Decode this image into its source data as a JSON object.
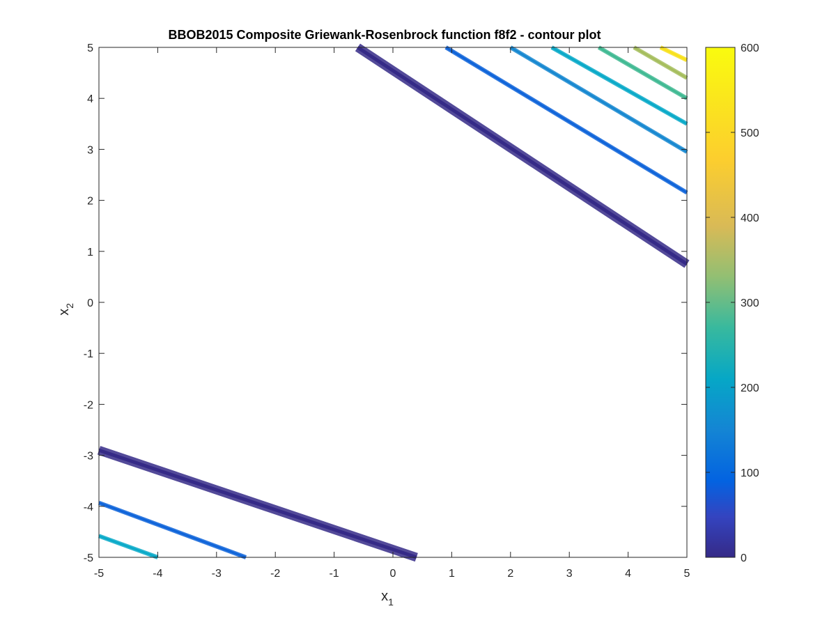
{
  "chart_data": {
    "type": "contour",
    "title": "BBOB2015 Composite Griewank-Rosenbrock function f8f2 - contour plot",
    "xlabel": {
      "main": "x",
      "sub": "1"
    },
    "ylabel": {
      "main": "x",
      "sub": "2"
    },
    "xlim": [
      -5,
      5
    ],
    "ylim": [
      -5,
      5
    ],
    "xticks": [
      "-5",
      "-4",
      "-3",
      "-2",
      "-1",
      "0",
      "1",
      "2",
      "3",
      "4",
      "5"
    ],
    "yticks": [
      "-5",
      "-4",
      "-3",
      "-2",
      "-1",
      "0",
      "1",
      "2",
      "3",
      "4",
      "5"
    ],
    "grid": false,
    "colormap": "parula",
    "colorbar": {
      "range": [
        0,
        600
      ],
      "ticks": [
        "0",
        "100",
        "200",
        "300",
        "400",
        "500",
        "600"
      ]
    },
    "contour_levels": [
      {
        "level": 20,
        "color": "#352a87",
        "points": [
          [
            -0.6,
            5
          ],
          [
            5,
            0.75
          ]
        ]
      },
      {
        "level": 20,
        "color": "#352a87",
        "points": [
          [
            -5,
            -2.9
          ],
          [
            0.4,
            -5
          ]
        ]
      },
      {
        "level": 110,
        "color": "#0d63d9",
        "points": [
          [
            0.9,
            5
          ],
          [
            5,
            2.15
          ]
        ]
      },
      {
        "level": 110,
        "color": "#0d63d9",
        "points": [
          [
            -5,
            -3.93
          ],
          [
            -2.5,
            -5
          ]
        ]
      },
      {
        "level": 190,
        "color": "#1587d0",
        "points": [
          [
            2.0,
            5
          ],
          [
            5,
            2.95
          ]
        ]
      },
      {
        "level": 250,
        "color": "#08a9c8",
        "points": [
          [
            2.7,
            5
          ],
          [
            5,
            3.5
          ]
        ]
      },
      {
        "level": 250,
        "color": "#08a9c8",
        "points": [
          [
            -5,
            -4.58
          ],
          [
            -4.0,
            -5
          ]
        ]
      },
      {
        "level": 320,
        "color": "#3fb992",
        "points": [
          [
            3.5,
            5
          ],
          [
            5,
            4.0
          ]
        ]
      },
      {
        "level": 420,
        "color": "#a5bd5c",
        "points": [
          [
            4.1,
            5
          ],
          [
            5,
            4.4
          ]
        ]
      },
      {
        "level": 570,
        "color": "#f8e11a",
        "points": [
          [
            4.55,
            5
          ],
          [
            5,
            4.75
          ]
        ]
      }
    ]
  }
}
